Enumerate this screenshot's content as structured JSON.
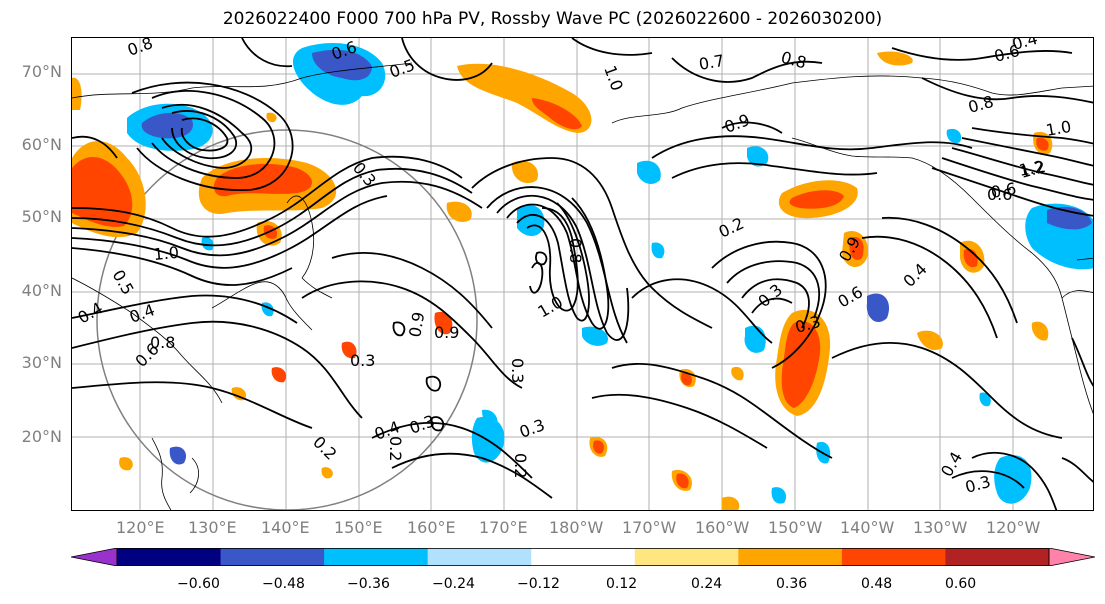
{
  "title": "2026022400 F000 700 hPa PV, Rossby Wave PC (2026022600 - 2026030200)",
  "lat_labels": [
    "70°N",
    "60°N",
    "50°N",
    "40°N",
    "30°N",
    "20°N"
  ],
  "lon_labels": [
    "120°E",
    "130°E",
    "140°E",
    "150°E",
    "160°E",
    "170°E",
    "180°W",
    "170°W",
    "160°W",
    "150°W",
    "140°W",
    "130°W",
    "120°W"
  ],
  "contour_labels": [
    "0.8",
    "0.6",
    "0.5",
    "1.0",
    "0.7",
    "0.8",
    "0.6",
    "0.4",
    "1.2",
    "0.6",
    "0.3",
    "0.4",
    "0.8",
    "0.9",
    "1.0",
    "1.0",
    "0.2",
    "0.9",
    "0.8",
    "1.2",
    "0.6",
    "1.0",
    "0.5",
    "0.4",
    "0.6",
    "0.3",
    "0.9",
    "0.3",
    "0.2",
    "0.4",
    "0.3",
    "0.3",
    "0.2",
    "0.2",
    "0.8",
    "0.3",
    "0.3",
    "0.9",
    "0.6",
    "0.4",
    "0.4",
    "0.3"
  ],
  "colorbar": {
    "ticks": [
      "−0.60",
      "−0.48",
      "−0.36",
      "−0.24",
      "−0.12",
      "0.12",
      "0.24",
      "0.36",
      "0.48",
      "0.60"
    ],
    "colors": [
      "#9932cc",
      "#000080",
      "#3a57c7",
      "#00bfff",
      "#b0e2ff",
      "#ffffff",
      "#ffe680",
      "#ffa500",
      "#ff4500",
      "#b22222",
      "#ff82ab"
    ]
  },
  "shading_colors": {
    "neg_strong": "#3a57c7",
    "neg_mid": "#00bfff",
    "neg_weak": "#b0e2ff",
    "pos_weak": "#ffe680",
    "pos_mid": "#ffa500",
    "pos_strong": "#ff4500"
  }
}
